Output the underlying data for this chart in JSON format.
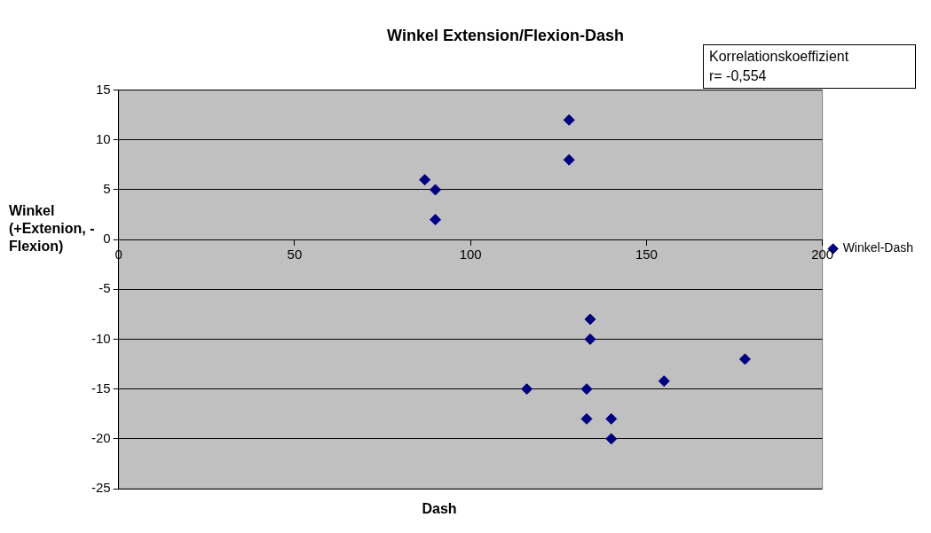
{
  "chart_data": {
    "type": "scatter",
    "title": "Winkel Extension/Flexion-Dash",
    "xlabel": "Dash",
    "ylabel": "Winkel (+Extenion, -Flexion)",
    "annotations": [
      "Korrelationskoeffizient\nr= -0,554"
    ],
    "series": [
      {
        "name": "Winkel-Dash",
        "color": "#000080",
        "x": [
          87,
          90,
          90,
          128,
          128,
          134,
          134,
          116,
          133,
          133,
          140,
          140,
          155,
          178
        ],
        "values": [
          6,
          5,
          2,
          12,
          8,
          -8,
          -10,
          -15,
          -15,
          -18,
          -18,
          -20,
          -14.2,
          -12
        ]
      }
    ],
    "xlim": [
      0,
      200
    ],
    "xticks": [
      0,
      50,
      100,
      150,
      200
    ],
    "ylim": [
      -25,
      15
    ],
    "yticks": [
      -25,
      -20,
      -15,
      -10,
      -5,
      0,
      5,
      10,
      15
    ],
    "grid": "y",
    "legend": "right",
    "marker": "diamond"
  }
}
